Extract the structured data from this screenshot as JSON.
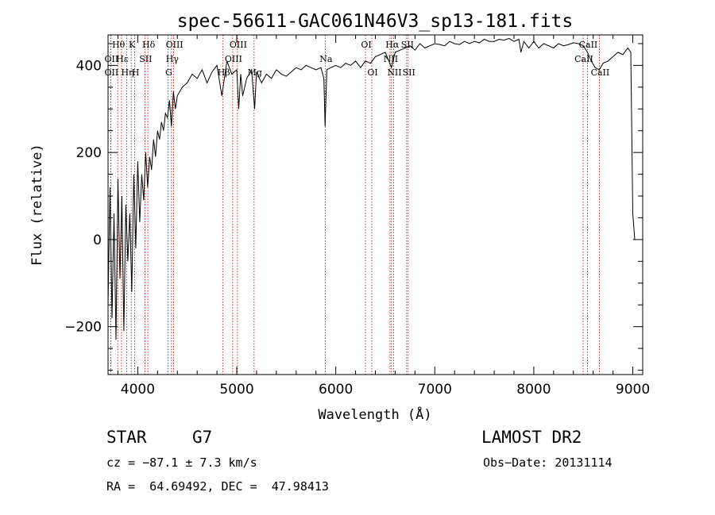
{
  "chart_data": {
    "type": "line",
    "title": "spec-56611-GAC061N46V3_sp13-181.fits",
    "xlabel": "Wavelength (Å)",
    "ylabel": "Flux (relative)",
    "xlim": [
      3700,
      9100
    ],
    "ylim": [
      -310,
      470
    ],
    "x_ticks": [
      4000,
      5000,
      6000,
      7000,
      8000,
      9000
    ],
    "y_ticks": [
      -200,
      0,
      200,
      400
    ],
    "series": [
      {
        "x": [
          3700,
          3720,
          3740,
          3760,
          3780,
          3800,
          3820,
          3840,
          3860,
          3880,
          3900,
          3920,
          3940,
          3960,
          3980,
          4000,
          4020,
          4040,
          4060,
          4080,
          4100,
          4120,
          4140,
          4160,
          4180,
          4200,
          4220,
          4240,
          4260,
          4280,
          4300,
          4320,
          4340,
          4360,
          4380,
          4400,
          4450,
          4500,
          4550,
          4600,
          4650,
          4700,
          4750,
          4800,
          4850,
          4900,
          4950,
          5000,
          5020,
          5040,
          5060,
          5100,
          5150,
          5180,
          5200,
          5250,
          5300,
          5350,
          5400,
          5450,
          5500,
          5550,
          5600,
          5650,
          5700,
          5750,
          5800,
          5850,
          5880,
          5892,
          5910,
          5950,
          6000,
          6050,
          6100,
          6150,
          6200,
          6250,
          6300,
          6350,
          6400,
          6450,
          6500,
          6563,
          6600,
          6650,
          6700,
          6750,
          6800,
          6850,
          6900,
          6950,
          7000,
          7050,
          7100,
          7150,
          7200,
          7250,
          7300,
          7350,
          7400,
          7450,
          7500,
          7550,
          7600,
          7650,
          7700,
          7750,
          7800,
          7850,
          7870,
          7900,
          7950,
          8000,
          8050,
          8100,
          8150,
          8200,
          8250,
          8300,
          8350,
          8400,
          8450,
          8500,
          8542,
          8580,
          8620,
          8662,
          8700,
          8750,
          8800,
          8850,
          8900,
          8950,
          8980,
          9000,
          9020
        ],
        "y": [
          -150,
          120,
          -180,
          60,
          -230,
          140,
          -90,
          100,
          -210,
          80,
          -50,
          60,
          -120,
          150,
          -20,
          180,
          40,
          150,
          90,
          200,
          120,
          190,
          160,
          230,
          190,
          250,
          230,
          270,
          250,
          290,
          280,
          320,
          260,
          340,
          300,
          330,
          350,
          360,
          380,
          370,
          390,
          360,
          385,
          400,
          330,
          410,
          380,
          390,
          300,
          380,
          330,
          370,
          390,
          300,
          385,
          360,
          380,
          370,
          390,
          380,
          375,
          385,
          395,
          390,
          400,
          395,
          390,
          395,
          370,
          260,
          390,
          395,
          400,
          395,
          405,
          400,
          410,
          395,
          410,
          405,
          420,
          425,
          430,
          395,
          430,
          435,
          440,
          445,
          435,
          450,
          440,
          445,
          450,
          448,
          445,
          455,
          450,
          448,
          455,
          450,
          455,
          452,
          460,
          455,
          455,
          460,
          458,
          462,
          455,
          460,
          430,
          455,
          440,
          455,
          440,
          450,
          445,
          440,
          450,
          445,
          448,
          452,
          450,
          445,
          430,
          410,
          395,
          390,
          405,
          410,
          420,
          430,
          425,
          440,
          430,
          60,
          0
        ]
      }
    ],
    "spectral_lines": [
      {
        "label": "Hθ",
        "x": 3798,
        "row": 1
      },
      {
        "label": "OII",
        "x": 3727,
        "row": 2
      },
      {
        "label": "OII",
        "x": 3727,
        "row": 3
      },
      {
        "label": "K",
        "x": 3934,
        "row": 1
      },
      {
        "label": "Hε",
        "x": 3836,
        "row": 2
      },
      {
        "label": "Hη",
        "x": 3889,
        "row": 3
      },
      {
        "label": "H",
        "x": 3970,
        "row": 3
      },
      {
        "label": "SII",
        "x": 4072,
        "row": 2
      },
      {
        "label": "Hδ",
        "x": 4102,
        "row": 1
      },
      {
        "label": "OIII",
        "x": 4363,
        "row": 1
      },
      {
        "label": "Hγ",
        "x": 4341,
        "row": 2
      },
      {
        "label": "G",
        "x": 4305,
        "row": 3
      },
      {
        "label": "OIII",
        "x": 5007,
        "row": 1
      },
      {
        "label": "OIII",
        "x": 4959,
        "row": 2
      },
      {
        "label": "Hβ",
        "x": 4861,
        "row": 3
      },
      {
        "label": "Mg",
        "x": 5175,
        "row": 3
      },
      {
        "label": "Na",
        "x": 5893,
        "row": 2
      },
      {
        "label": "OI",
        "x": 6300,
        "row": 1
      },
      {
        "label": "OI",
        "x": 6364,
        "row": 3
      },
      {
        "label": "Hα",
        "x": 6563,
        "row": 1
      },
      {
        "label": "SII",
        "x": 6716,
        "row": 1
      },
      {
        "label": "NII",
        "x": 6548,
        "row": 2
      },
      {
        "label": "NII",
        "x": 6584,
        "row": 3
      },
      {
        "label": "SII",
        "x": 6731,
        "row": 3
      },
      {
        "label": "CaII",
        "x": 8542,
        "row": 1
      },
      {
        "label": "CaII",
        "x": 8498,
        "row": 2
      },
      {
        "label": "CaII",
        "x": 8662,
        "row": 3
      }
    ]
  },
  "info": {
    "object_class": "STAR",
    "subclass": "G7",
    "survey": "LAMOST DR2",
    "cz": "cz = −87.1 ± 7.3 km/s",
    "obs_date": "Obs−Date: 20131114",
    "radec": "RA =  64.69492, DEC =  47.98413"
  }
}
